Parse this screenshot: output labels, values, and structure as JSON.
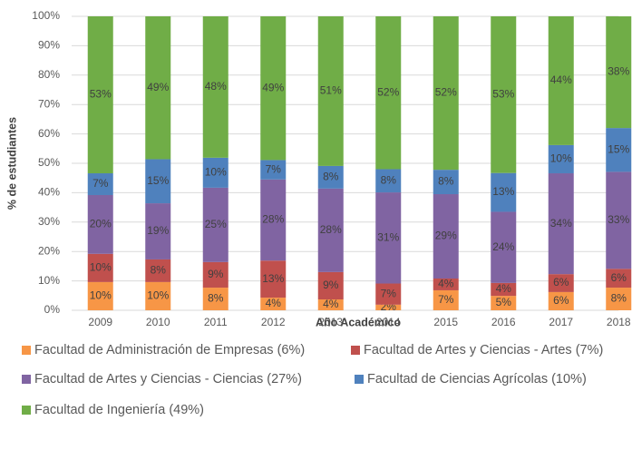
{
  "chart_data": {
    "type": "stacked_bar",
    "x_label": "Año Académico",
    "y_label": "% de estudiantes",
    "categories": [
      "2009",
      "2010",
      "2011",
      "2012",
      "2013",
      "2014",
      "2015",
      "2016",
      "2017",
      "2018"
    ],
    "ylim": [
      0,
      100
    ],
    "yticks": [
      {
        "value": 0,
        "label": "0%"
      },
      {
        "value": 10,
        "label": "10%"
      },
      {
        "value": 20,
        "label": "20%"
      },
      {
        "value": 30,
        "label": "30%"
      },
      {
        "value": 40,
        "label": "40%"
      },
      {
        "value": 50,
        "label": "50%"
      },
      {
        "value": 60,
        "label": "60%"
      },
      {
        "value": 70,
        "label": "70%"
      },
      {
        "value": 80,
        "label": "80%"
      },
      {
        "value": 90,
        "label": "90%"
      },
      {
        "value": 100,
        "label": "100%"
      }
    ],
    "grid": true,
    "legend": "bottom",
    "series": [
      {
        "name": "Facultad de Administración de Empresas (6%)",
        "color": "#f79646",
        "values": [
          9.6,
          9.6,
          7.7,
          4.3,
          3.7,
          1.9,
          6.8,
          4.9,
          6.2,
          7.7
        ],
        "value_labels": [
          "10%",
          "10%",
          "8%",
          "4%",
          "4%",
          "2%",
          "7%",
          "5%",
          "6%",
          "8%"
        ]
      },
      {
        "name": "Facultad de Artes y Ciencias - Artes (7%)",
        "color": "#c0504d",
        "values": [
          9.6,
          7.7,
          8.7,
          12.6,
          9.3,
          7.2,
          4.0,
          4.4,
          6.1,
          6.4
        ],
        "value_labels": [
          "10%",
          "8%",
          "9%",
          "13%",
          "9%",
          "7%",
          "4%",
          "4%",
          "6%",
          "6%"
        ]
      },
      {
        "name": "Facultad de Artes y Ciencias - Ciencias (27%)",
        "color": "#8064a2",
        "values": [
          20.0,
          19.1,
          25.3,
          27.6,
          28.4,
          31.0,
          28.7,
          24.2,
          34.3,
          33.0
        ],
        "value_labels": [
          "20%",
          "19%",
          "25%",
          "28%",
          "28%",
          "31%",
          "29%",
          "24%",
          "34%",
          "33%"
        ]
      },
      {
        "name": "Facultad de Ciencias Agrícolas (10%)",
        "color": "#4f81bd",
        "values": [
          7.4,
          15.0,
          10.2,
          6.6,
          7.7,
          7.9,
          8.3,
          13.2,
          9.6,
          14.9
        ],
        "value_labels": [
          "7%",
          "15%",
          "10%",
          "7%",
          "8%",
          "8%",
          "8%",
          "13%",
          "10%",
          "15%"
        ]
      },
      {
        "name": "Facultad de Ingeniería (49%)",
        "color": "#70ad47",
        "values": [
          53.4,
          48.6,
          48.1,
          48.9,
          50.9,
          52.0,
          52.2,
          53.3,
          43.8,
          38.0
        ],
        "value_labels": [
          "53%",
          "49%",
          "48%",
          "49%",
          "51%",
          "52%",
          "52%",
          "53%",
          "44%",
          "38%"
        ]
      }
    ]
  }
}
